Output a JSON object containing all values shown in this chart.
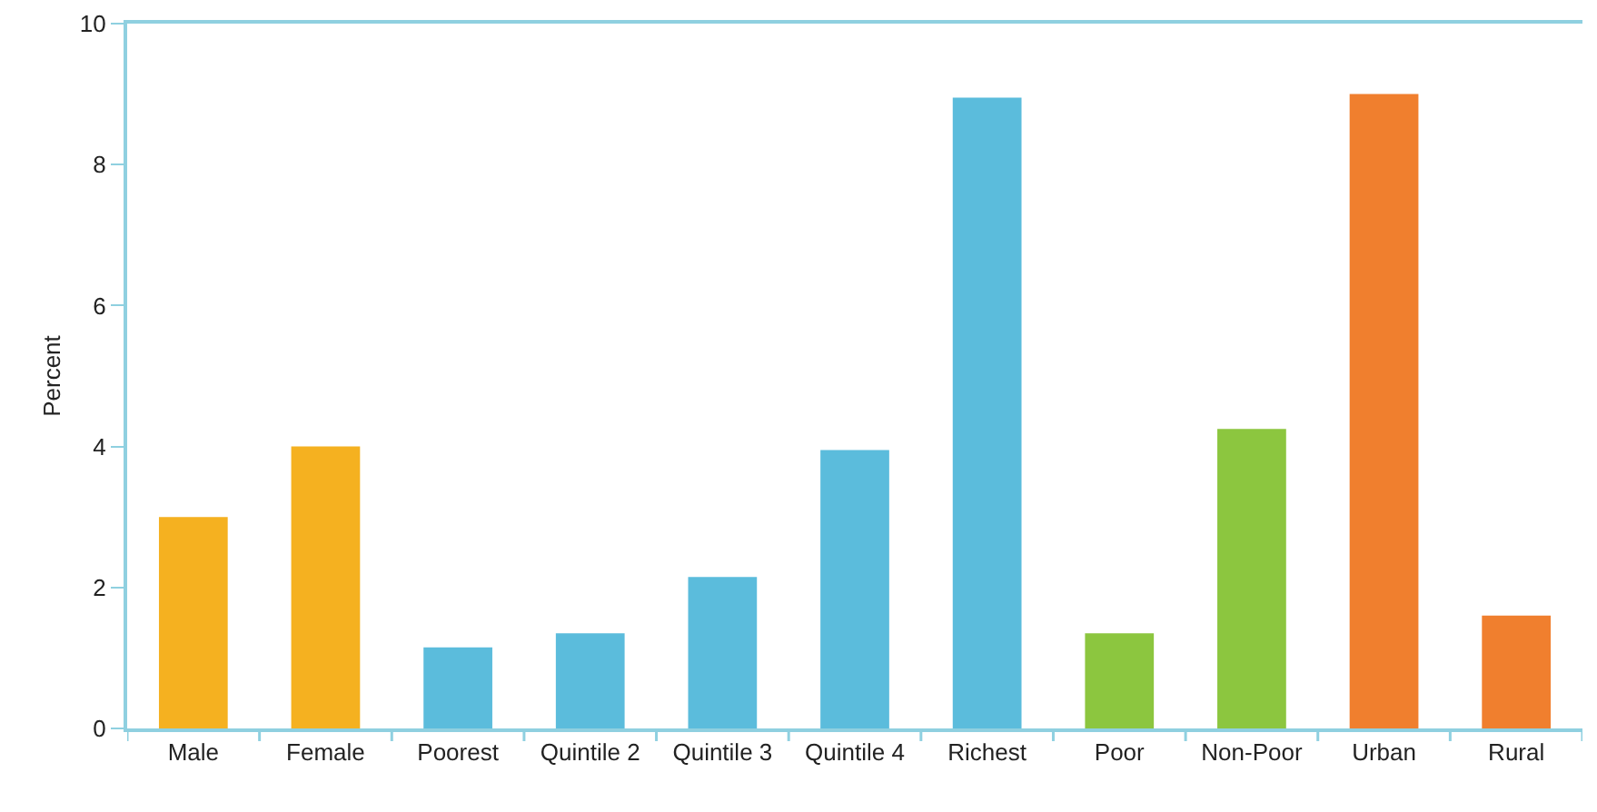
{
  "chart_data": {
    "type": "bar",
    "ylabel": "Percent",
    "categories": [
      "Male",
      "Female",
      "Poorest",
      "Quintile 2",
      "Quintile 3",
      "Quintile 4",
      "Richest",
      "Poor",
      "Non-Poor",
      "Urban",
      "Rural"
    ],
    "values": [
      3.0,
      4.0,
      1.15,
      1.35,
      2.15,
      3.95,
      8.95,
      1.35,
      4.25,
      9.0,
      1.6
    ],
    "colors": [
      "#f5b120",
      "#f5b120",
      "#5bbcdc",
      "#5bbcdc",
      "#5bbcdc",
      "#5bbcdc",
      "#5bbcdc",
      "#8cc63f",
      "#8cc63f",
      "#f07f2e",
      "#f07f2e"
    ],
    "ylim": [
      0,
      10
    ],
    "yticks": [
      0,
      2,
      4,
      6,
      8,
      10
    ],
    "grid": false
  }
}
